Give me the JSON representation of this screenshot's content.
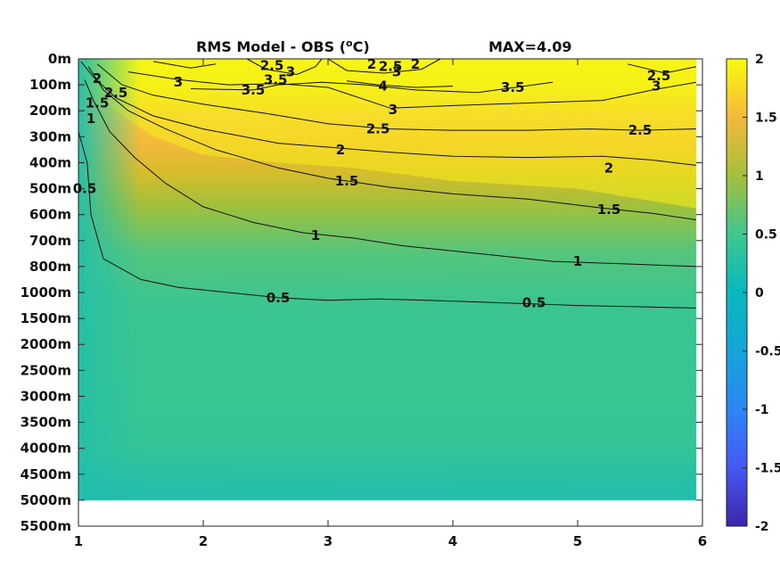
{
  "chart_data": {
    "type": "heatmap",
    "title": "RMS Model - OBS (",
    "title_unit_sup": "o",
    "title_unit_tail": "C)",
    "max_label": "MAX=4.09",
    "xlim": [
      1,
      6
    ],
    "x_ticks": [
      "1",
      "2",
      "3",
      "4",
      "5",
      "6"
    ],
    "y_ticks": [
      "0m",
      "100m",
      "200m",
      "300m",
      "400m",
      "500m",
      "600m",
      "700m",
      "800m",
      "1000m",
      "1500m",
      "2000m",
      "2500m",
      "3000m",
      "3500m",
      "4000m",
      "4500m",
      "5000m",
      "5500m"
    ],
    "data_end_level": "5000m",
    "colorbar": {
      "range": [
        -2,
        2
      ],
      "ticks": [
        "2",
        "1.5",
        "1",
        "0.5",
        "0",
        "-0.5",
        "-1",
        "-1.5",
        "-2"
      ]
    },
    "contour_levels": [
      0.5,
      1,
      1.5,
      2,
      2.5,
      3,
      3.5,
      4
    ],
    "contour_labels": [
      {
        "text": "0.5",
        "x": 1.05,
        "level": 5.0
      },
      {
        "text": "0.5",
        "x": 2.6,
        "level": 9.2
      },
      {
        "text": "0.5",
        "x": 4.65,
        "level": 9.4
      },
      {
        "text": "1",
        "x": 1.1,
        "level": 2.3
      },
      {
        "text": "1",
        "x": 2.9,
        "level": 6.8
      },
      {
        "text": "1",
        "x": 5.0,
        "level": 7.8
      },
      {
        "text": "1.5",
        "x": 1.15,
        "level": 1.7
      },
      {
        "text": "1.5",
        "x": 3.15,
        "level": 4.7
      },
      {
        "text": "1.5",
        "x": 5.25,
        "level": 5.8
      },
      {
        "text": "2",
        "x": 1.15,
        "level": 0.75
      },
      {
        "text": "2",
        "x": 3.1,
        "level": 3.5
      },
      {
        "text": "2",
        "x": 5.25,
        "level": 4.2
      },
      {
        "text": "2",
        "x": 3.35,
        "level": 0.2
      },
      {
        "text": "2",
        "x": 3.7,
        "level": 0.2
      },
      {
        "text": "2.5",
        "x": 1.3,
        "level": 1.3
      },
      {
        "text": "2.5",
        "x": 2.55,
        "level": 0.25
      },
      {
        "text": "2.5",
        "x": 3.5,
        "level": 0.3
      },
      {
        "text": "2.5",
        "x": 3.4,
        "level": 2.7
      },
      {
        "text": "2.5",
        "x": 5.5,
        "level": 2.75
      },
      {
        "text": "2.5",
        "x": 5.65,
        "level": 0.65
      },
      {
        "text": "3",
        "x": 1.8,
        "level": 0.9
      },
      {
        "text": "3",
        "x": 2.7,
        "level": 0.5
      },
      {
        "text": "3",
        "x": 3.55,
        "level": 0.5
      },
      {
        "text": "3",
        "x": 3.52,
        "level": 1.95
      },
      {
        "text": "3",
        "x": 5.63,
        "level": 1.05
      },
      {
        "text": "3.5",
        "x": 2.4,
        "level": 1.2
      },
      {
        "text": "3.5",
        "x": 2.58,
        "level": 0.8
      },
      {
        "text": "3.5",
        "x": 4.48,
        "level": 1.1
      },
      {
        "text": "4",
        "x": 3.44,
        "level": 1.05
      }
    ]
  }
}
